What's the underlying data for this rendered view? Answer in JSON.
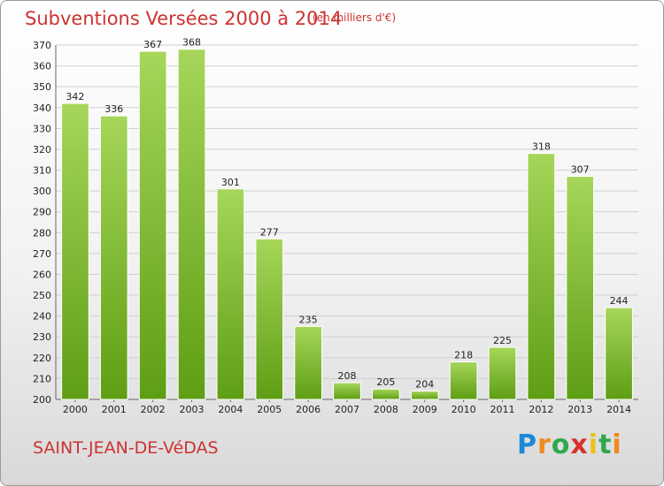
{
  "header": {
    "title": "Subventions Versées 2000 à 2014",
    "subtitle": "(en milliers d'€)"
  },
  "footer": {
    "commune": "SAINT-JEAN-DE-VéDAS",
    "logo": "Proxiti"
  },
  "colors": {
    "title": "#cc3333",
    "bar_light": "#a6d65a",
    "bar_dark": "#5e9e14",
    "grid": "#cfcfcf"
  },
  "chart_data": {
    "type": "bar",
    "title": "Subventions Versées 2000 à 2014",
    "subtitle": "(en milliers d'€)",
    "categories": [
      "2000",
      "2001",
      "2002",
      "2003",
      "2004",
      "2005",
      "2006",
      "2007",
      "2008",
      "2009",
      "2010",
      "2011",
      "2012",
      "2013",
      "2014"
    ],
    "values": [
      342,
      336,
      367,
      368,
      301,
      277,
      235,
      208,
      205,
      204,
      218,
      225,
      318,
      307,
      244
    ],
    "ylim": [
      200,
      370
    ],
    "yticks": [
      200,
      210,
      220,
      230,
      240,
      250,
      260,
      270,
      280,
      290,
      300,
      310,
      320,
      330,
      340,
      350,
      360,
      370
    ],
    "grid": true,
    "xlabel": "",
    "ylabel": ""
  }
}
